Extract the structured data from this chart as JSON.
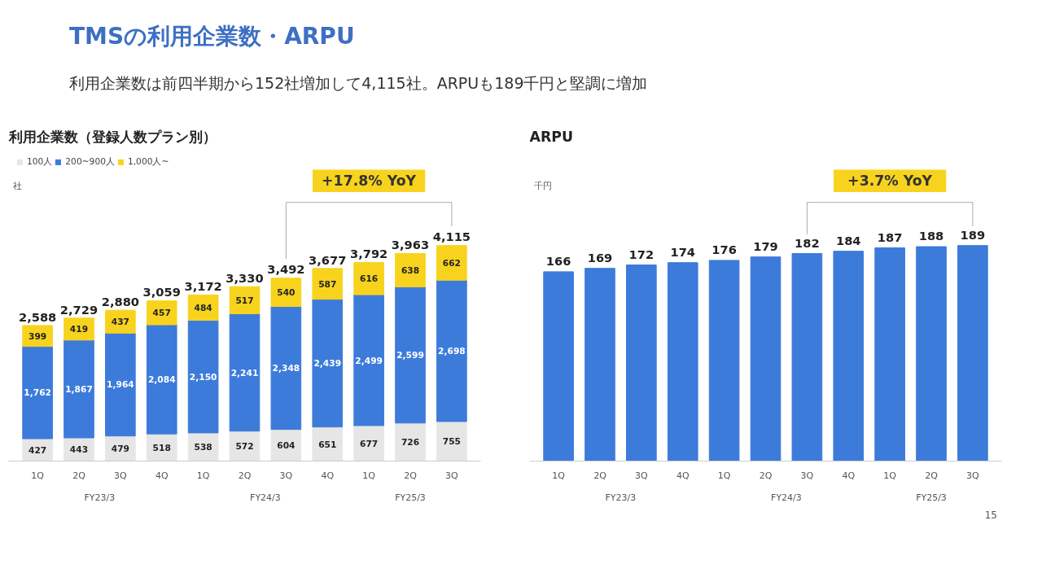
{
  "chart_data": [
    {
      "type": "bar",
      "title": "利用企業数（登録人数プラン別）",
      "ylabel": "社",
      "stacked": true,
      "legend": "top left",
      "grid": false,
      "categories": [
        "1Q",
        "2Q",
        "3Q",
        "4Q",
        "1Q",
        "2Q",
        "3Q",
        "4Q",
        "1Q",
        "2Q",
        "3Q"
      ],
      "series": [
        {
          "name": "100人",
          "color": "#e6e6e6",
          "values": [
            427,
            443,
            479,
            518,
            538,
            572,
            604,
            651,
            677,
            726,
            755
          ],
          "value_labels": [
            "427",
            "443",
            "479",
            "518",
            "538",
            "572",
            "604",
            "651",
            "677",
            "726",
            "755"
          ]
        },
        {
          "name": "200~900人",
          "color": "#3d7bdb",
          "values": [
            1762,
            1867,
            1964,
            2084,
            2150,
            2241,
            2348,
            2439,
            2499,
            2599,
            2698
          ],
          "value_labels": [
            "1,762",
            "1,867",
            "1,964",
            "2,084",
            "2,150",
            "2,241",
            "2,348",
            "2,439",
            "2,499",
            "2,599",
            "2,698"
          ]
        },
        {
          "name": "1,000人~",
          "color": "#f8d31e",
          "values": [
            399,
            419,
            437,
            457,
            484,
            517,
            540,
            587,
            616,
            638,
            662
          ],
          "value_labels": [
            "399",
            "419",
            "437",
            "457",
            "484",
            "517",
            "540",
            "587",
            "616",
            "638",
            "662"
          ]
        }
      ],
      "totals": [
        "2,588",
        "2,729",
        "2,880",
        "3,059",
        "3,172",
        "3,330",
        "3,492",
        "3,677",
        "3,792",
        "3,963",
        "4,115"
      ],
      "annotations": [
        "TMSの利用企業数・ARPU",
        "利用企業数は前四半期から152社増加して4,115社。ARPUも189千円と堅調に増加",
        "15",
        "+17.8% YoY",
        "FY23/3",
        "FY24/3",
        "FY25/3"
      ]
    },
    {
      "type": "bar",
      "title": "ARPU",
      "ylabel": "千円",
      "data_labels": true,
      "grid": false,
      "categories": [
        "1Q",
        "2Q",
        "3Q",
        "4Q",
        "1Q",
        "2Q",
        "3Q",
        "4Q",
        "1Q",
        "2Q",
        "3Q"
      ],
      "series": [
        {
          "color": "#3d7bdb",
          "values": [
            166,
            169,
            172,
            174,
            176,
            179,
            182,
            184,
            187,
            188,
            189
          ]
        }
      ],
      "annotations": [
        "+3.7% YoY",
        "FY23/3",
        "FY24/3",
        "FY25/3"
      ]
    }
  ]
}
